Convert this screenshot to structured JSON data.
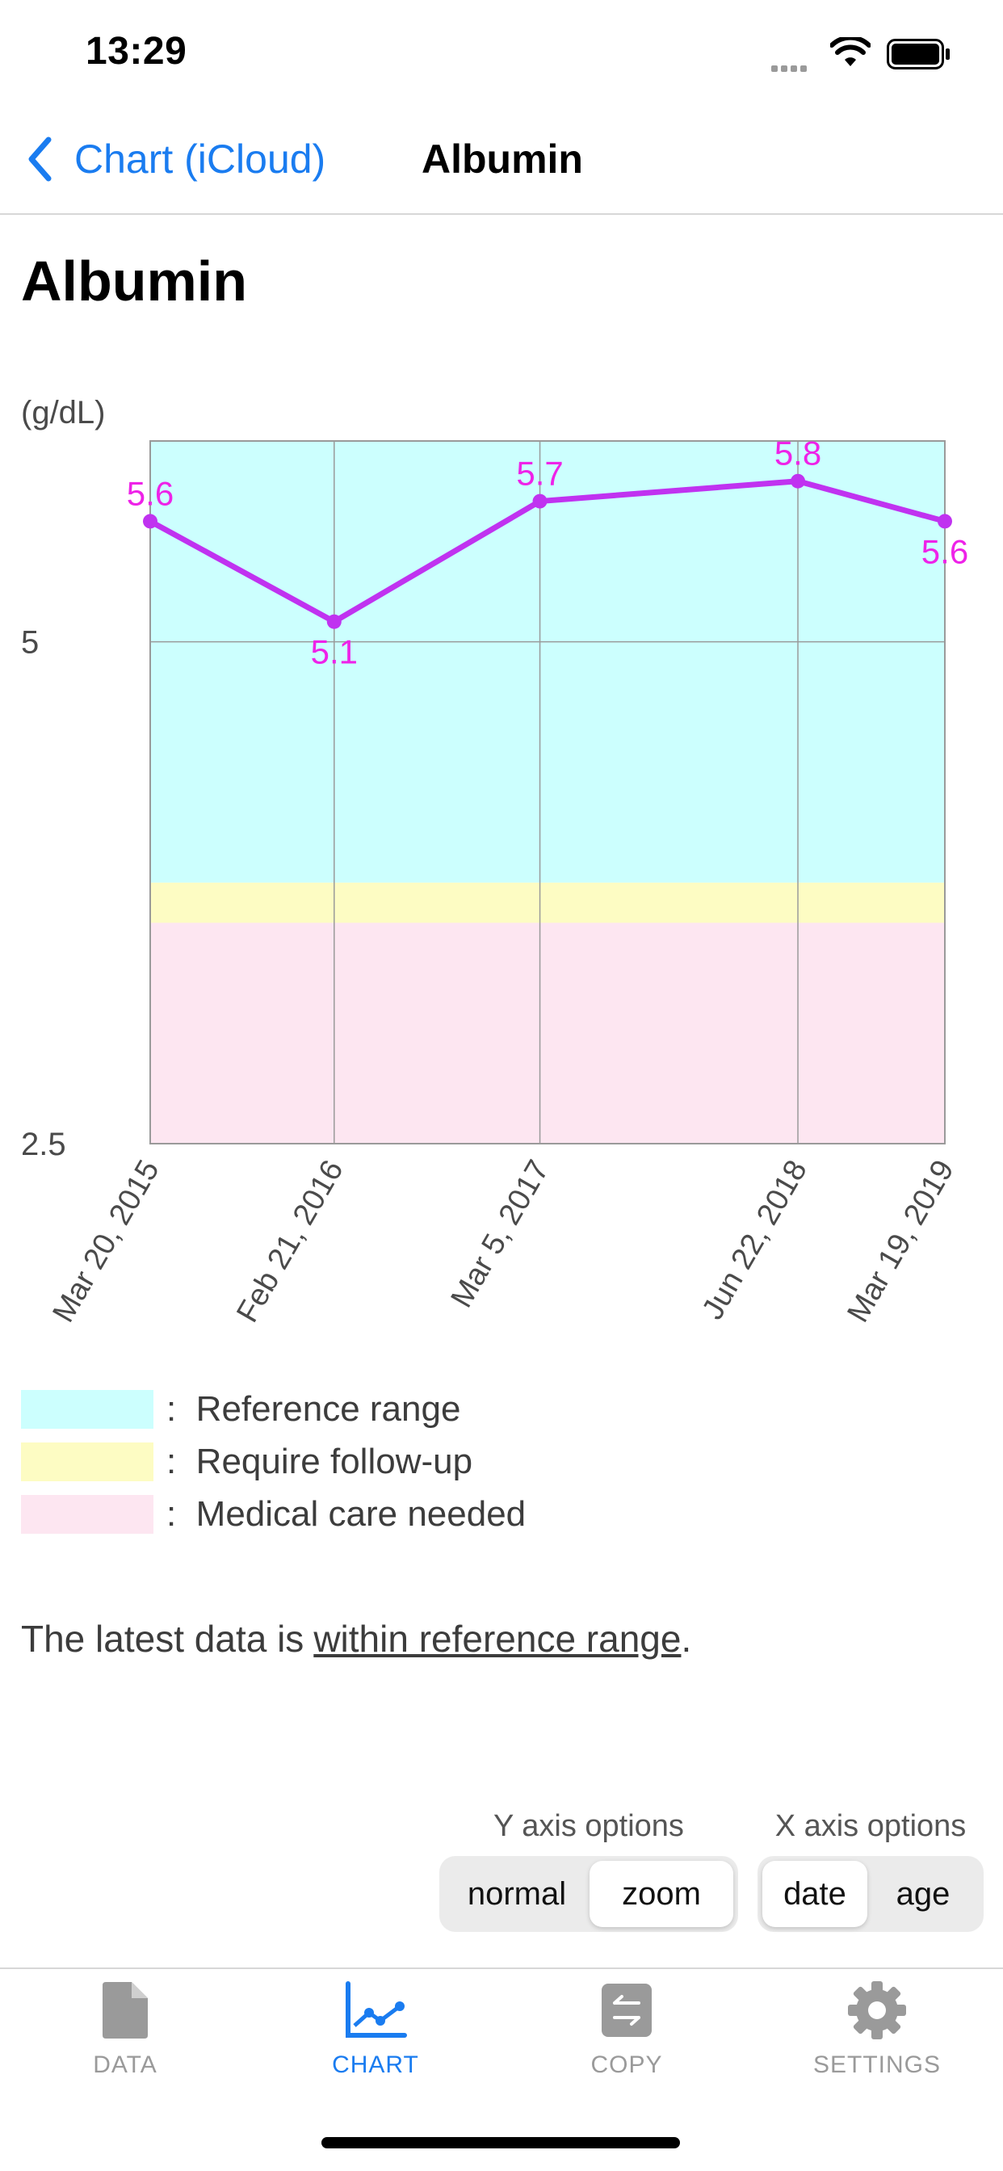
{
  "status_bar": {
    "time": "13:29"
  },
  "nav": {
    "back_label": "Chart (iCloud)",
    "title": "Albumin"
  },
  "page": {
    "heading": "Albumin",
    "status_prefix": "The latest data is",
    "status_link": "within reference range",
    "status_suffix": "."
  },
  "chart_data": {
    "type": "line",
    "ylabel": "(g/dL)",
    "ylim": [
      2.5,
      6.0
    ],
    "yticks": [
      5,
      2.5
    ],
    "ytick_labels": [
      "5",
      "2.5"
    ],
    "categories": [
      "Mar 20, 2015",
      "Feb 21, 2016",
      "Mar 5, 2017",
      "Jun 22, 2018",
      "Mar 19, 2019"
    ],
    "x_day_offsets": [
      0,
      338,
      716,
      1190,
      1460
    ],
    "values": [
      5.6,
      5.1,
      5.7,
      5.8,
      5.6
    ],
    "data_labels": [
      "5.6",
      "5.1",
      "5.7",
      "5.8",
      "5.6"
    ],
    "bands": [
      {
        "name": "Reference range",
        "from": 3.8,
        "to": 6.0,
        "color": "#ccfffe"
      },
      {
        "name": "Require follow-up",
        "from": 3.6,
        "to": 3.8,
        "color": "#fdfcc3"
      },
      {
        "name": "Medical care needed",
        "from": 2.5,
        "to": 3.6,
        "color": "#fde6f1"
      }
    ],
    "line_color": "#c032f0",
    "label_color": "#ee22e8",
    "grid": true
  },
  "legend": {
    "items": [
      {
        "label": ":  Reference range",
        "color": "#ccfffe"
      },
      {
        "label": ":  Require follow-up",
        "color": "#fdfcc3"
      },
      {
        "label": ":  Medical care needed",
        "color": "#fde6f1"
      }
    ]
  },
  "options": {
    "y_title": "Y axis options",
    "y_normal": "normal",
    "y_zoom": "zoom",
    "x_title": "X axis options",
    "x_date": "date",
    "x_age": "age"
  },
  "tabs": [
    {
      "label": "DATA",
      "icon": "document-icon",
      "active": false
    },
    {
      "label": "CHART",
      "icon": "chart-icon",
      "active": true
    },
    {
      "label": "COPY",
      "icon": "copy-icon",
      "active": false
    },
    {
      "label": "SETTINGS",
      "icon": "gear-icon",
      "active": false
    }
  ],
  "colors": {
    "accent": "#1a7cf0",
    "inactive": "#9a9a9a"
  }
}
